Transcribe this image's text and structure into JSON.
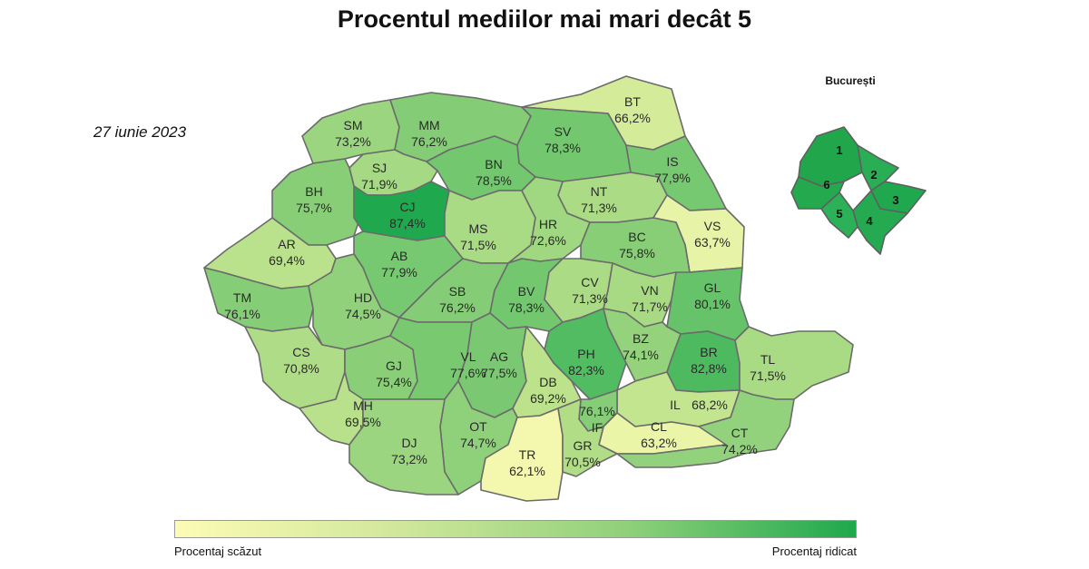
{
  "title": "Procentul mediilor mai mari decât 5",
  "date": "27 iunie 2023",
  "bucharest_title": "București",
  "legend": {
    "low_label": "Procentaj scăzut",
    "high_label": "Procentaj ridicat",
    "low_color": "#fdfbb6",
    "high_color": "#1fa84d"
  },
  "color_scale": {
    "min_value": 62.1,
    "max_value": 87.4
  },
  "counties": [
    {
      "code": "SM",
      "value": "73,2%"
    },
    {
      "code": "MM",
      "value": "76,2%"
    },
    {
      "code": "BT",
      "value": "66,2%"
    },
    {
      "code": "SV",
      "value": "78,3%"
    },
    {
      "code": "SJ",
      "value": "71,9%"
    },
    {
      "code": "BN",
      "value": "78,5%"
    },
    {
      "code": "IS",
      "value": "77,9%"
    },
    {
      "code": "BH",
      "value": "75,7%"
    },
    {
      "code": "CJ",
      "value": "87,4%"
    },
    {
      "code": "NT",
      "value": "71,3%"
    },
    {
      "code": "VS",
      "value": "63,7%"
    },
    {
      "code": "AR",
      "value": "69,4%"
    },
    {
      "code": "MS",
      "value": "71,5%"
    },
    {
      "code": "HR",
      "value": "72,6%"
    },
    {
      "code": "BC",
      "value": "75,8%"
    },
    {
      "code": "AB",
      "value": "77,9%"
    },
    {
      "code": "TM",
      "value": "76,1%"
    },
    {
      "code": "HD",
      "value": "74,5%"
    },
    {
      "code": "SB",
      "value": "76,2%"
    },
    {
      "code": "BV",
      "value": "78,3%"
    },
    {
      "code": "CV",
      "value": "71,3%"
    },
    {
      "code": "VN",
      "value": "71,7%"
    },
    {
      "code": "GL",
      "value": "80,1%"
    },
    {
      "code": "CS",
      "value": "70,8%"
    },
    {
      "code": "GJ",
      "value": "75,4%"
    },
    {
      "code": "VL",
      "value": "77,6%"
    },
    {
      "code": "AG",
      "value": "77,5%"
    },
    {
      "code": "PH",
      "value": "82,3%"
    },
    {
      "code": "BZ",
      "value": "74,1%"
    },
    {
      "code": "BR",
      "value": "82,8%"
    },
    {
      "code": "TL",
      "value": "71,5%"
    },
    {
      "code": "DB",
      "value": "69,2%"
    },
    {
      "code": "IL",
      "value": "68,2%"
    },
    {
      "code": "MH",
      "value": "69,5%"
    },
    {
      "code": "IF",
      "value": "76,1%"
    },
    {
      "code": "CL",
      "value": "63,2%"
    },
    {
      "code": "OT",
      "value": "74,7%"
    },
    {
      "code": "DJ",
      "value": "73,2%"
    },
    {
      "code": "TR",
      "value": "62,1%"
    },
    {
      "code": "GR",
      "value": "70,5%"
    },
    {
      "code": "CT",
      "value": "74,2%"
    }
  ],
  "bucharest_sectors": [
    "1",
    "2",
    "3",
    "4",
    "5",
    "6"
  ]
}
